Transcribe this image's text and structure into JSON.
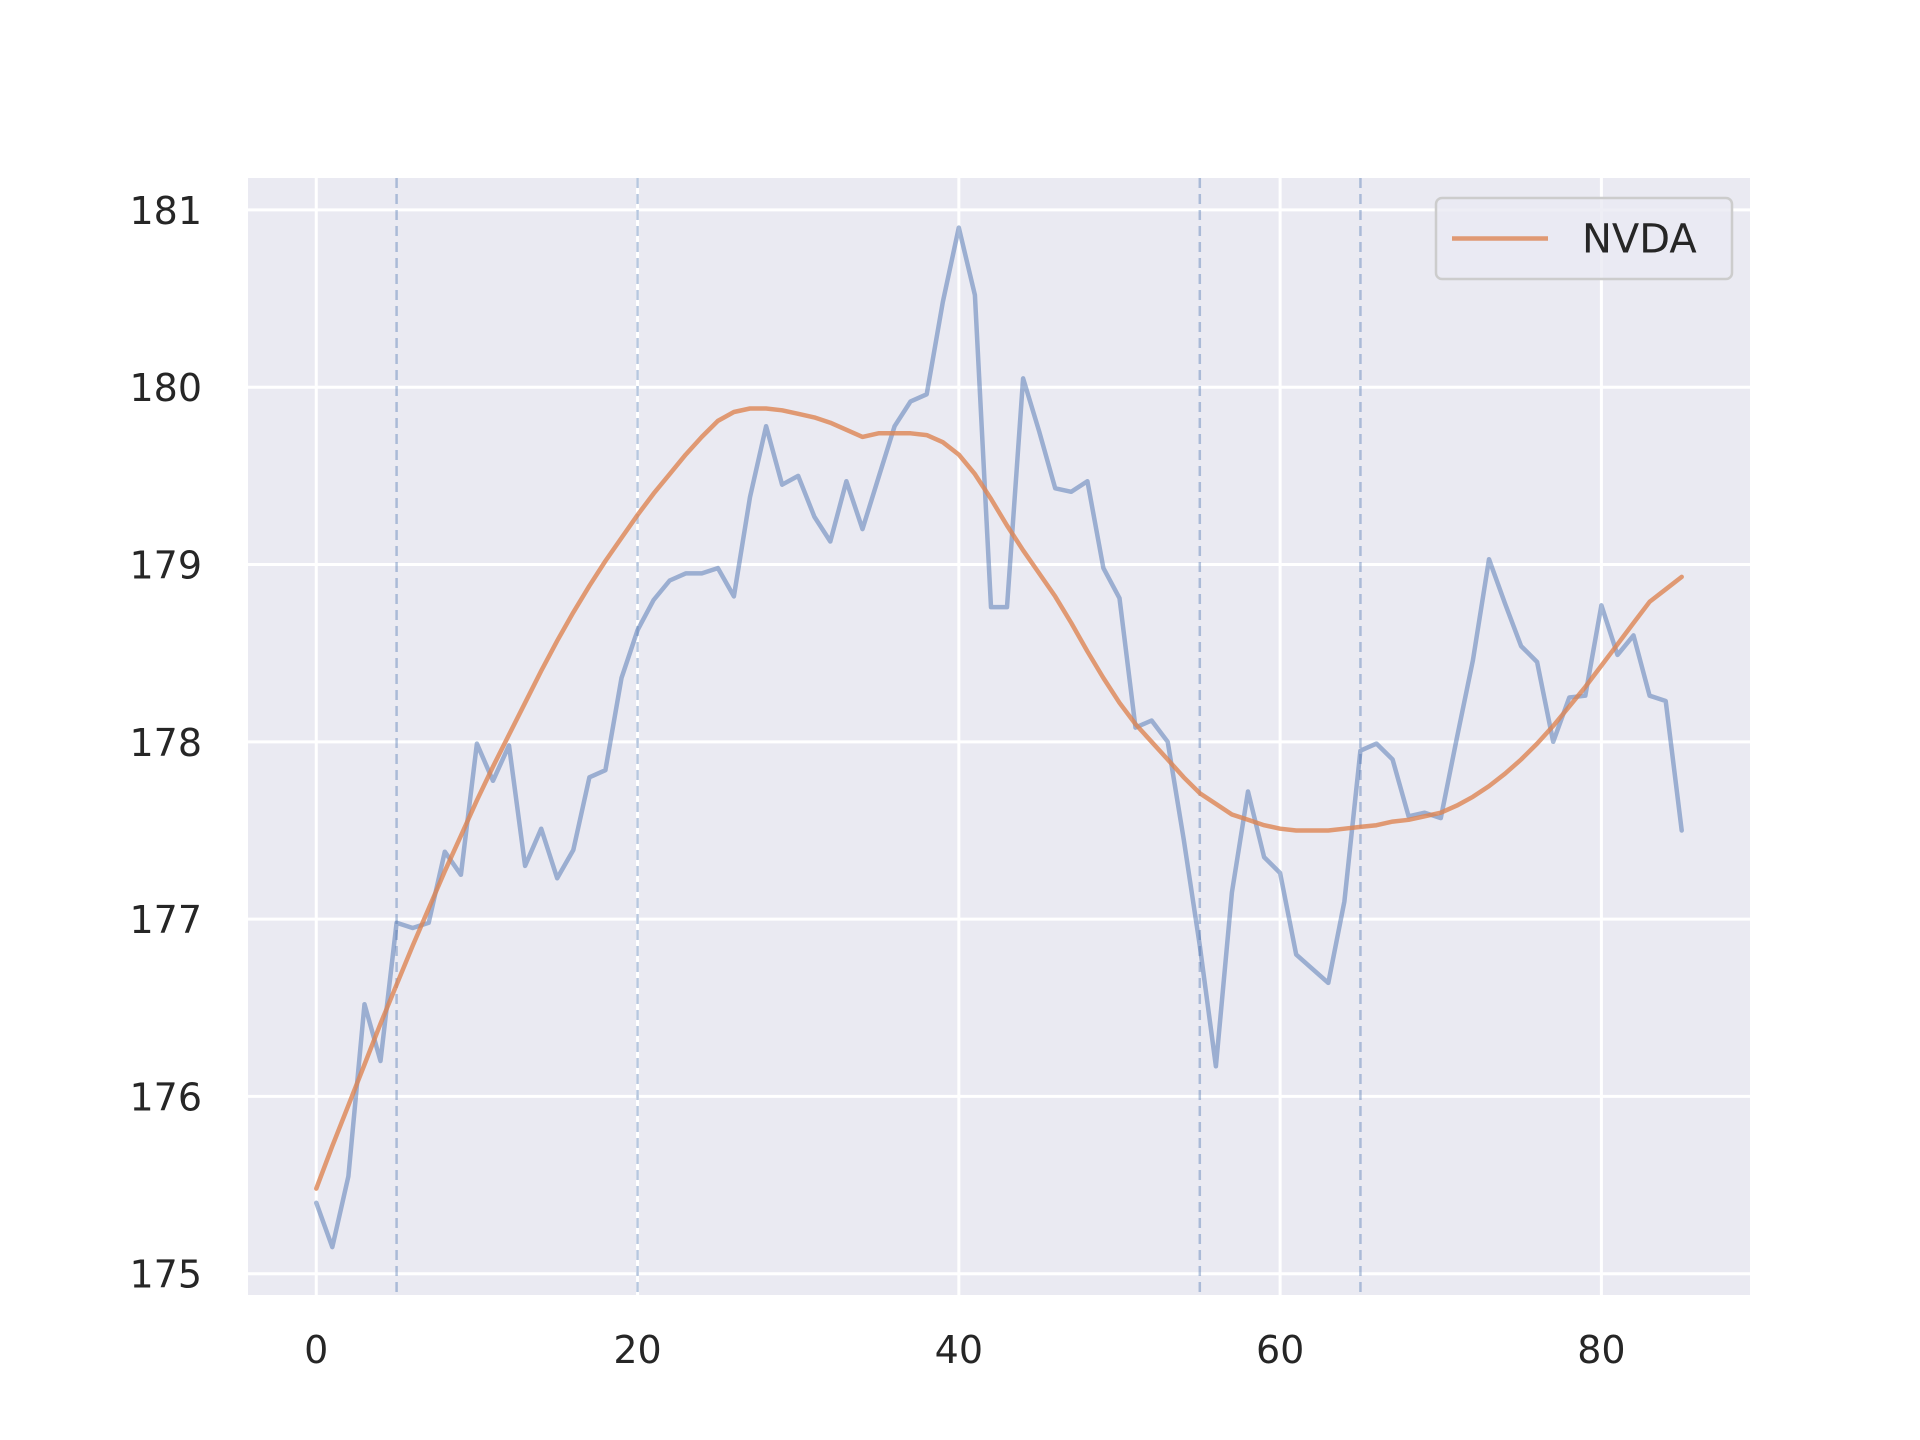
{
  "chart_data": {
    "type": "line",
    "title": "",
    "xlabel": "",
    "ylabel": "",
    "xlim": [
      -4.25,
      89.25
    ],
    "ylim": [
      174.88,
      181.18
    ],
    "x_ticks": [
      0,
      20,
      40,
      60,
      80
    ],
    "y_ticks": [
      175,
      176,
      177,
      178,
      179,
      180,
      181
    ],
    "grid": true,
    "legend_position": "top-right",
    "colors": {
      "background": "#eaeaf2",
      "grid": "#ffffff",
      "raw_series": "#4c72b0",
      "trend_series": "#dd8452",
      "vlines": "#4c72b0"
    },
    "vertical_lines": [
      5,
      20,
      55,
      65
    ],
    "series": [
      {
        "name": "",
        "role": "price",
        "values": [
          175.4,
          175.15,
          175.55,
          176.52,
          176.2,
          176.98,
          176.95,
          176.98,
          177.38,
          177.25,
          177.99,
          177.78,
          177.98,
          177.3,
          177.51,
          177.23,
          177.39,
          177.8,
          177.84,
          178.36,
          178.63,
          178.8,
          178.91,
          178.95,
          178.95,
          178.98,
          178.82,
          179.38,
          179.78,
          179.45,
          179.5,
          179.27,
          179.13,
          179.47,
          179.2,
          179.49,
          179.78,
          179.92,
          179.96,
          180.48,
          180.9,
          180.52,
          178.76,
          178.76,
          180.05,
          179.75,
          179.43,
          179.41,
          179.47,
          178.98,
          178.81,
          178.08,
          178.12,
          178.0,
          177.45,
          176.85,
          176.17,
          177.15,
          177.72,
          177.35,
          177.26,
          176.8,
          176.72,
          176.64,
          177.1,
          177.95,
          177.99,
          177.9,
          177.58,
          177.6,
          177.57,
          178.02,
          178.46,
          179.03,
          178.78,
          178.54,
          178.45,
          178.0,
          178.25,
          178.26,
          178.77,
          178.49,
          178.6,
          178.26,
          178.23,
          177.5
        ]
      },
      {
        "name": "NVDA",
        "role": "trend",
        "values": [
          175.48,
          175.72,
          175.95,
          176.18,
          176.41,
          176.63,
          176.85,
          177.06,
          177.27,
          177.47,
          177.67,
          177.86,
          178.04,
          178.22,
          178.4,
          178.57,
          178.73,
          178.88,
          179.02,
          179.15,
          179.28,
          179.4,
          179.51,
          179.62,
          179.72,
          179.81,
          179.86,
          179.88,
          179.88,
          179.87,
          179.85,
          179.83,
          179.8,
          179.76,
          179.72,
          179.74,
          179.74,
          179.74,
          179.73,
          179.69,
          179.62,
          179.51,
          179.37,
          179.22,
          179.08,
          178.95,
          178.82,
          178.67,
          178.51,
          178.36,
          178.22,
          178.1,
          178.0,
          177.9,
          177.8,
          177.71,
          177.65,
          177.59,
          177.56,
          177.53,
          177.51,
          177.5,
          177.5,
          177.5,
          177.51,
          177.52,
          177.53,
          177.55,
          177.56,
          177.58,
          177.6,
          177.64,
          177.69,
          177.75,
          177.82,
          177.9,
          177.99,
          178.09,
          178.2,
          178.31,
          178.43,
          178.55,
          178.67,
          178.79,
          178.86,
          178.93
        ]
      }
    ]
  }
}
